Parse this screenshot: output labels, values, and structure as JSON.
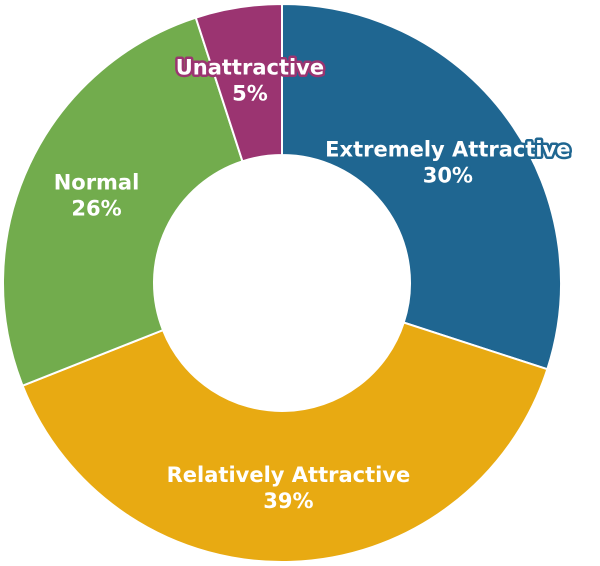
{
  "chart_data": {
    "type": "donut",
    "categories": [
      "Extremely Attractive",
      "Relatively Attractive",
      "Normal",
      "Unattractive"
    ],
    "values": [
      30,
      39,
      26,
      5
    ],
    "value_labels": [
      "30%",
      "39%",
      "26%",
      "5%"
    ],
    "colors": [
      "#1f6691",
      "#e8aa12",
      "#72ac4d",
      "#9b3471"
    ]
  }
}
